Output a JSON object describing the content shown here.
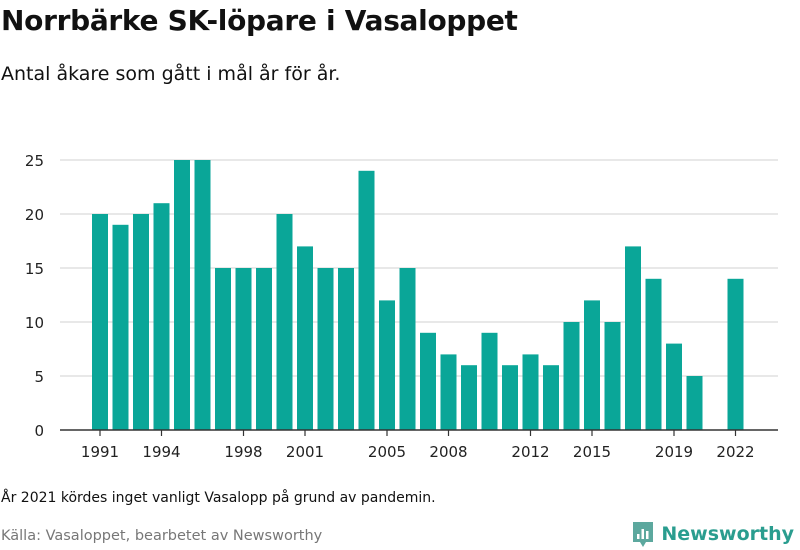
{
  "chart_data": {
    "type": "bar",
    "title": "Norrbärke SK-löpare i Vasaloppet",
    "subtitle": "Antal åkare som gått i mål år för år.",
    "xlabel": "",
    "ylabel": "",
    "categories": [
      1991,
      1992,
      1993,
      1994,
      1995,
      1996,
      1997,
      1998,
      1999,
      2000,
      2001,
      2002,
      2003,
      2004,
      2005,
      2006,
      2007,
      2008,
      2009,
      2010,
      2011,
      2012,
      2013,
      2014,
      2015,
      2016,
      2017,
      2018,
      2019,
      2020,
      2021,
      2022
    ],
    "values": [
      20,
      19,
      20,
      21,
      25,
      25,
      15,
      15,
      15,
      20,
      17,
      15,
      15,
      24,
      12,
      15,
      9,
      7,
      6,
      9,
      6,
      7,
      6,
      10,
      12,
      10,
      17,
      14,
      8,
      5,
      null,
      14
    ],
    "x_tick_labels": [
      "1991",
      "1994",
      "1998",
      "2001",
      "2005",
      "2008",
      "2012",
      "2015",
      "2019",
      "2022"
    ],
    "y_ticks": [
      0,
      5,
      10,
      15,
      20,
      25
    ],
    "ylim": [
      0,
      25
    ],
    "grid": true,
    "legend": "none",
    "bar_color": "#0aa698"
  },
  "note": "År 2021 kördes inget vanligt Vasalopp på grund av pandemin.",
  "source": "Källa: Vasaloppet, bearbetet av Newsworthy",
  "brand": {
    "name": "Newsworthy",
    "icon": "newsworthy-logo-icon",
    "color": "#2a9d8f"
  }
}
